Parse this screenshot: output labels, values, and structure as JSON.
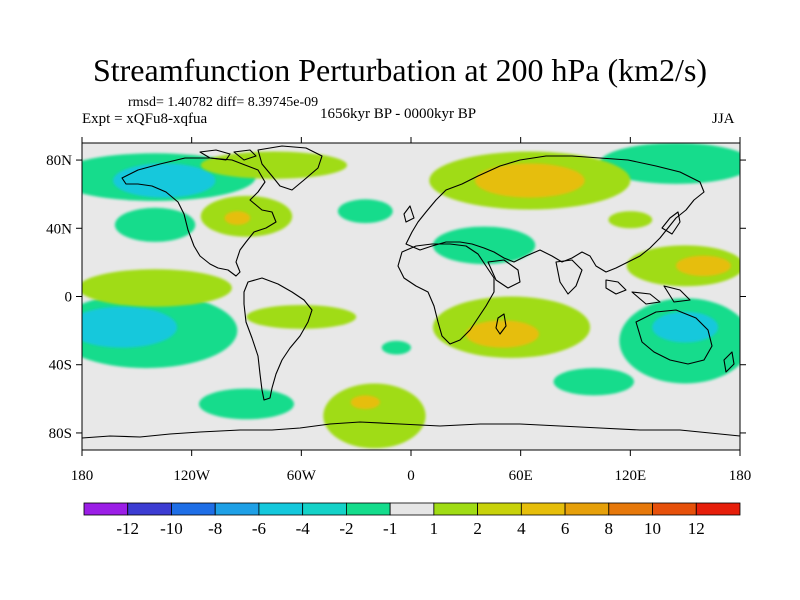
{
  "chart_data": {
    "type": "heatmap",
    "title": "Streamfunction Perturbation at 200 hPa (km2/s)",
    "stats": "rmsd= 1.40782  diff= 8.39745e-09",
    "experiment": "Expt = xQFu8-xqfua",
    "period": "1656kyr BP - 0000kyr BP",
    "season": "JJA",
    "xlim": [
      -180,
      180
    ],
    "ylim": [
      -90,
      90
    ],
    "x_ticks": [
      {
        "value": -180,
        "label": "180"
      },
      {
        "value": -120,
        "label": "120W"
      },
      {
        "value": -60,
        "label": "60W"
      },
      {
        "value": 0,
        "label": "0"
      },
      {
        "value": 60,
        "label": "60E"
      },
      {
        "value": 120,
        "label": "120E"
      },
      {
        "value": 180,
        "label": "180"
      }
    ],
    "y_ticks": [
      {
        "value": 80,
        "label": "80N"
      },
      {
        "value": 40,
        "label": "40N"
      },
      {
        "value": 0,
        "label": "0"
      },
      {
        "value": -40,
        "label": "40S"
      },
      {
        "value": -80,
        "label": "80S"
      }
    ],
    "colorbar": {
      "colors": [
        "#9b1ee6",
        "#3c3cd2",
        "#1e6ee6",
        "#1ea0e6",
        "#14c8dc",
        "#14d2c8",
        "#14dc8c",
        "#e6e6e6",
        "#a0dc14",
        "#c8d20a",
        "#e6be0a",
        "#e6a00a",
        "#e6780a",
        "#e6500a",
        "#e61e0a"
      ],
      "labels": [
        "-12",
        "-10",
        "-8",
        "-6",
        "-4",
        "-2",
        "-1",
        "1",
        "2",
        "4",
        "6",
        "8",
        "10",
        "12"
      ]
    },
    "regions": [
      {
        "level": -2,
        "lon": -140,
        "lat": 70,
        "rx": 55,
        "ry": 14
      },
      {
        "level": -4,
        "lon": -135,
        "lat": 68,
        "rx": 28,
        "ry": 10
      },
      {
        "level": -2,
        "lon": -140,
        "lat": 42,
        "rx": 22,
        "ry": 10
      },
      {
        "level": -2,
        "lon": -145,
        "lat": -20,
        "rx": 50,
        "ry": 22
      },
      {
        "level": -4,
        "lon": -158,
        "lat": -18,
        "rx": 30,
        "ry": 12
      },
      {
        "level": -2,
        "lon": -25,
        "lat": 50,
        "rx": 15,
        "ry": 7
      },
      {
        "level": -2,
        "lon": -8,
        "lat": -30,
        "rx": 8,
        "ry": 4
      },
      {
        "level": -2,
        "lon": 40,
        "lat": 30,
        "rx": 28,
        "ry": 11
      },
      {
        "level": -2,
        "lon": 145,
        "lat": 78,
        "rx": 42,
        "ry": 12
      },
      {
        "level": -2,
        "lon": 150,
        "lat": -26,
        "rx": 36,
        "ry": 25
      },
      {
        "level": -4,
        "lon": 150,
        "lat": -18,
        "rx": 18,
        "ry": 9
      },
      {
        "level": -2,
        "lon": 100,
        "lat": -50,
        "rx": 22,
        "ry": 8
      },
      {
        "level": -2,
        "lon": -90,
        "lat": -63,
        "rx": 26,
        "ry": 9
      },
      {
        "level": 2,
        "lon": -140,
        "lat": 5,
        "rx": 42,
        "ry": 11
      },
      {
        "level": 2,
        "lon": -90,
        "lat": 47,
        "rx": 25,
        "ry": 12
      },
      {
        "level": 4,
        "lon": -95,
        "lat": 46,
        "rx": 7,
        "ry": 4
      },
      {
        "level": 2,
        "lon": -75,
        "lat": 77,
        "rx": 40,
        "ry": 8
      },
      {
        "level": 2,
        "lon": -60,
        "lat": -12,
        "rx": 30,
        "ry": 7
      },
      {
        "level": 2,
        "lon": -20,
        "lat": -70,
        "rx": 28,
        "ry": 19
      },
      {
        "level": 4,
        "lon": -25,
        "lat": -62,
        "rx": 8,
        "ry": 4
      },
      {
        "level": 2,
        "lon": 65,
        "lat": 68,
        "rx": 55,
        "ry": 17
      },
      {
        "level": 4,
        "lon": 65,
        "lat": 68,
        "rx": 30,
        "ry": 10
      },
      {
        "level": 2,
        "lon": 55,
        "lat": -18,
        "rx": 43,
        "ry": 18
      },
      {
        "level": 4,
        "lon": 50,
        "lat": -22,
        "rx": 20,
        "ry": 8
      },
      {
        "level": 2,
        "lon": 150,
        "lat": 18,
        "rx": 32,
        "ry": 12
      },
      {
        "level": 4,
        "lon": 160,
        "lat": 18,
        "rx": 15,
        "ry": 6
      },
      {
        "level": 2,
        "lon": 120,
        "lat": 45,
        "rx": 12,
        "ry": 5
      }
    ]
  }
}
